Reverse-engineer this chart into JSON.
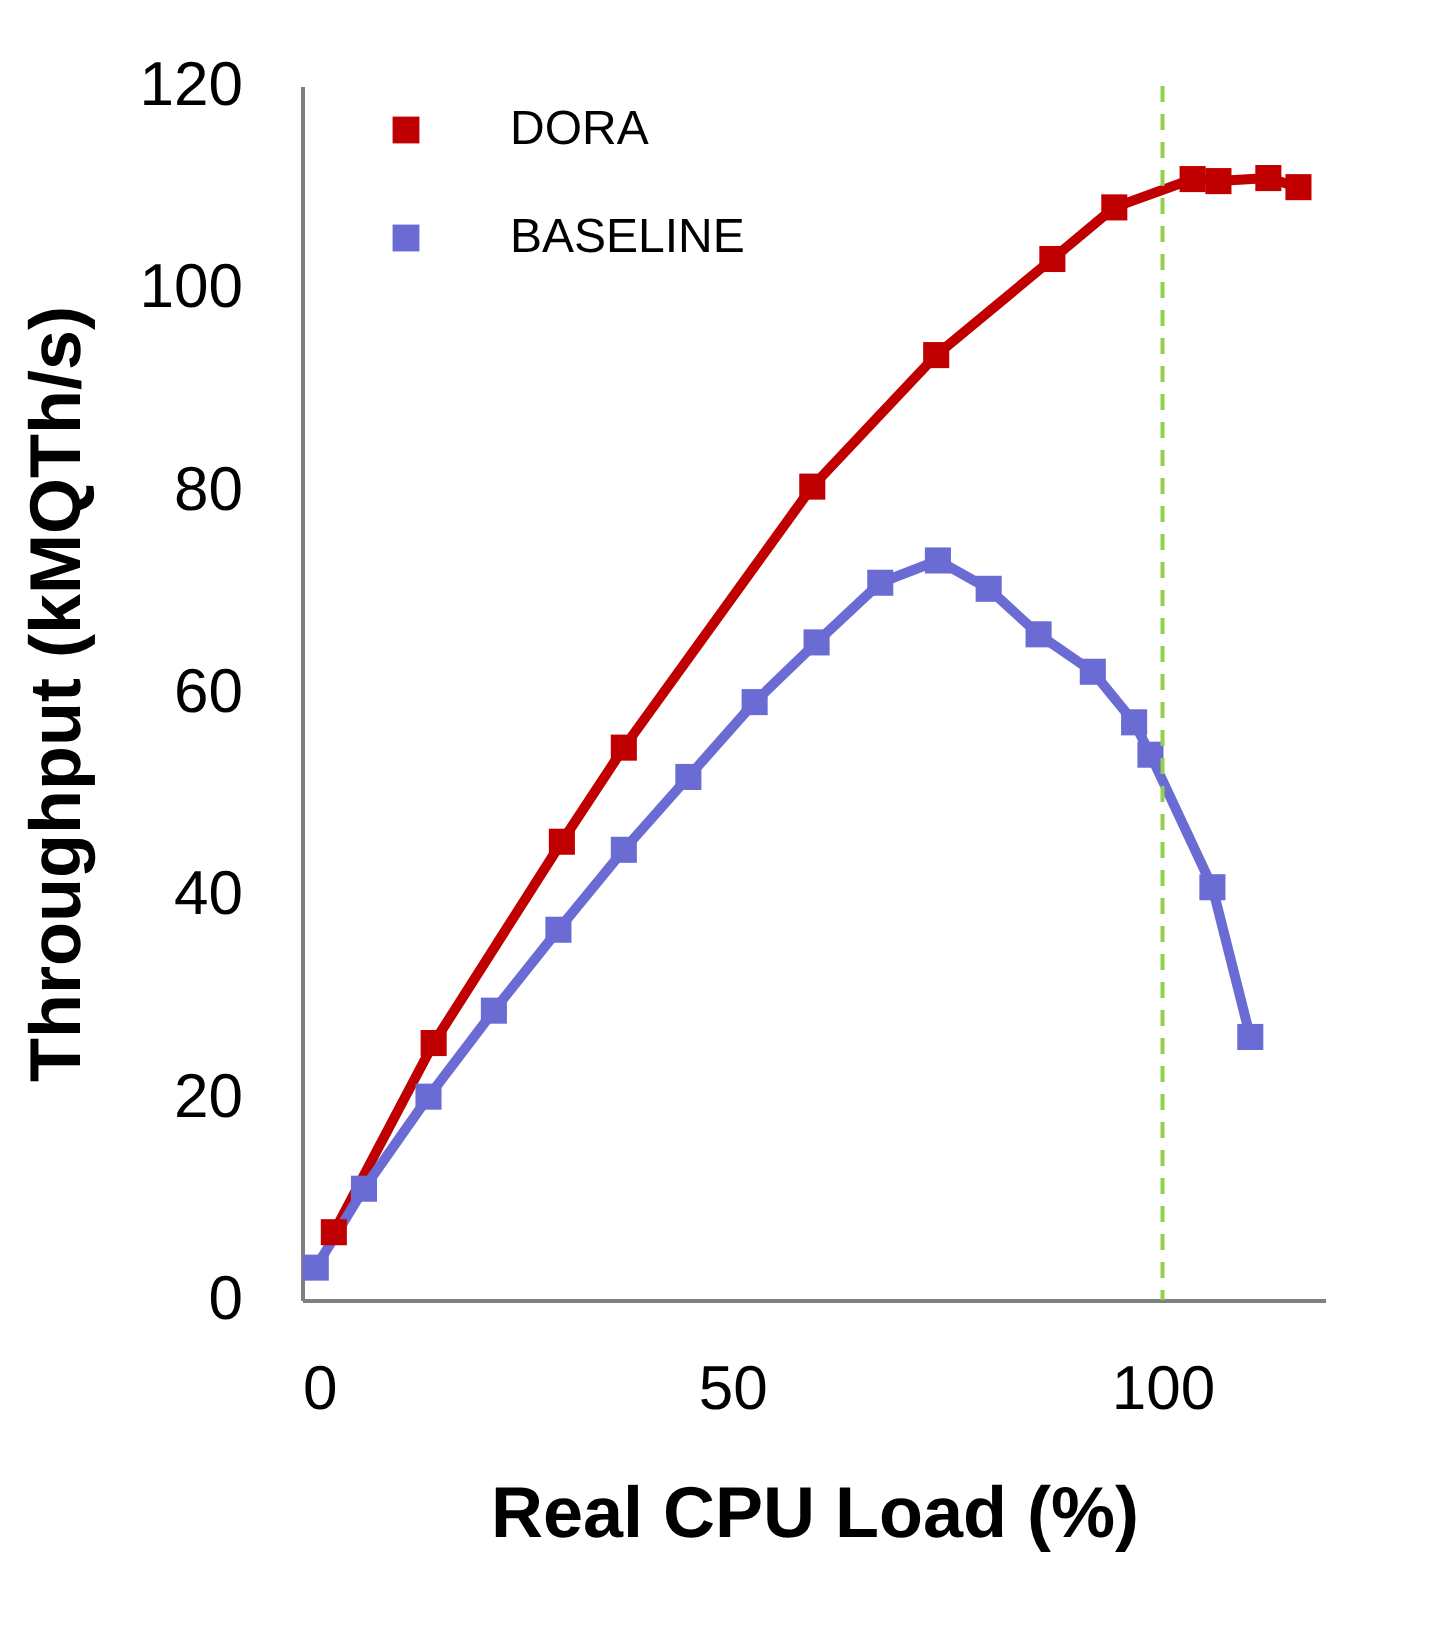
{
  "chart_data": {
    "type": "line",
    "xlabel": "Real CPU Load (%)",
    "ylabel": "Throughput (kMQTh/s)",
    "xlim": [
      0,
      119
    ],
    "xticks": [
      0,
      50,
      100
    ],
    "ylim": [
      0,
      120
    ],
    "yticks": [
      0,
      20,
      40,
      60,
      80,
      100,
      120
    ],
    "grid": false,
    "legend": "top left",
    "marker": "square",
    "line_style": "solid",
    "series": [
      {
        "name": "DORA",
        "color": "#c00000",
        "x": [
          3.7,
          15.3,
          30.2,
          37.4,
          59.3,
          73.7,
          87.2,
          94.4,
          103.5,
          106.5,
          112.3,
          115.8
        ],
        "values": [
          6.7,
          25.4,
          45.3,
          54.6,
          80.4,
          93.4,
          102.9,
          108.0,
          110.8,
          110.6,
          110.9,
          110.0
        ]
      },
      {
        "name": "BASELINE",
        "color": "#6b6bd4",
        "x": [
          1.6,
          7.2,
          14.7,
          22.3,
          29.8,
          37.4,
          44.9,
          52.6,
          59.8,
          67.2,
          73.9,
          79.8,
          85.6,
          91.9,
          96.7,
          98.6,
          105.8,
          110.2
        ],
        "values": [
          3.2,
          11.0,
          20.1,
          28.6,
          36.6,
          44.5,
          51.7,
          59.1,
          65.0,
          70.9,
          73.1,
          70.3,
          65.8,
          62.1,
          57.1,
          53.9,
          40.8,
          26.0
        ]
      }
    ],
    "ref_lines": [
      {
        "axis": "x",
        "value": 100,
        "color": "#92d050",
        "line_style": "dashed"
      }
    ]
  }
}
